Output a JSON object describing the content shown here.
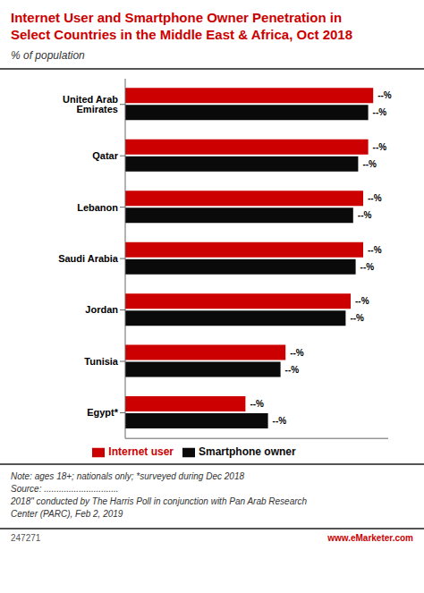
{
  "chart_data": {
    "type": "bar",
    "orientation": "horizontal",
    "title": "Internet User and Smartphone Owner Penetration in\nSelect Countries in the Middle East & Africa, Oct 2018",
    "subtitle": "% of population",
    "categories": [
      "United Arab Emirates",
      "Qatar",
      "Lebanon",
      "Saudi Arabia",
      "Jordan",
      "Tunisia",
      "Egypt*"
    ],
    "series": [
      {
        "name": "Internet user",
        "color": "#cc0000",
        "values": [
          99,
          97,
          95,
          95,
          90,
          64,
          48
        ],
        "value_labels": [
          "--%",
          "--%",
          "--%",
          "--%",
          "--%",
          "--%",
          "--%"
        ]
      },
      {
        "name": "Smartphone owner",
        "color": "#0a0a0a",
        "values": [
          97,
          93,
          91,
          92,
          88,
          62,
          57
        ],
        "value_labels": [
          "--%",
          "--%",
          "--%",
          "--%",
          "--%",
          "--%",
          "--%"
        ]
      }
    ],
    "xlim": [
      0,
      105
    ],
    "grid": false,
    "legend": "bottom",
    "data_labels": true,
    "tick_labels": "y",
    "annotations": [
      "Note: ages 18+; nationals only; *surveyed during Dec 2018",
      "Source: ..............................",
      "2018\" conducted by The Harris Poll in conjunction with Pan Arab Research",
      "Center (PARC), Feb 2, 2019",
      "247271",
      "www.eMarketer.com"
    ]
  }
}
